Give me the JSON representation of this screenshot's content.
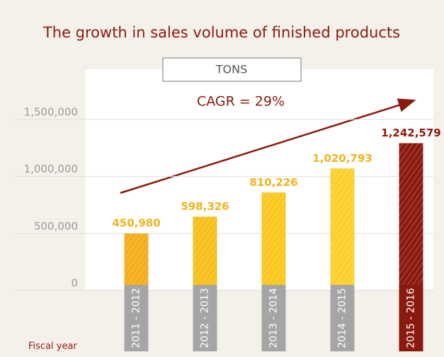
{
  "chart_data": {
    "type": "bar",
    "title": "The growth in sales volume of finished products",
    "unit_label": "TONS",
    "annotation": "CAGR = 29%",
    "x_label": "Fiscal year",
    "categories": [
      "2011 - 2012",
      "2012 - 2013",
      "2013 - 2014",
      "2014 - 2015",
      "2015 - 2016"
    ],
    "values": [
      450980,
      598326,
      810226,
      1020793,
      1242579
    ],
    "value_labels": [
      "450,980",
      "598,326",
      "810,226",
      "1,020,793",
      "1,242,579"
    ],
    "colors": [
      "#f4ad1c",
      "#f8c01c",
      "#fbc71e",
      "#fdcf2c",
      "#8b1a0e"
    ],
    "label_colors": [
      "#a6a5a5",
      "#a6a5a5",
      "#a6a5a5",
      "#a6a5a5",
      "#8b1a0e"
    ],
    "value_label_colors": [
      "#f5b21a",
      "#f5b21a",
      "#f5b21a",
      "#f5b21a",
      "#8b1a0e"
    ],
    "ylim": [
      0,
      1500000
    ],
    "yticks": [
      0,
      {
        "value": 500000,
        "label": "500,000"
      },
      {
        "value": 1000000,
        "label": "1,000,000"
      },
      {
        "value": 1500000,
        "label": "1,500,000"
      }
    ],
    "grid": true
  }
}
